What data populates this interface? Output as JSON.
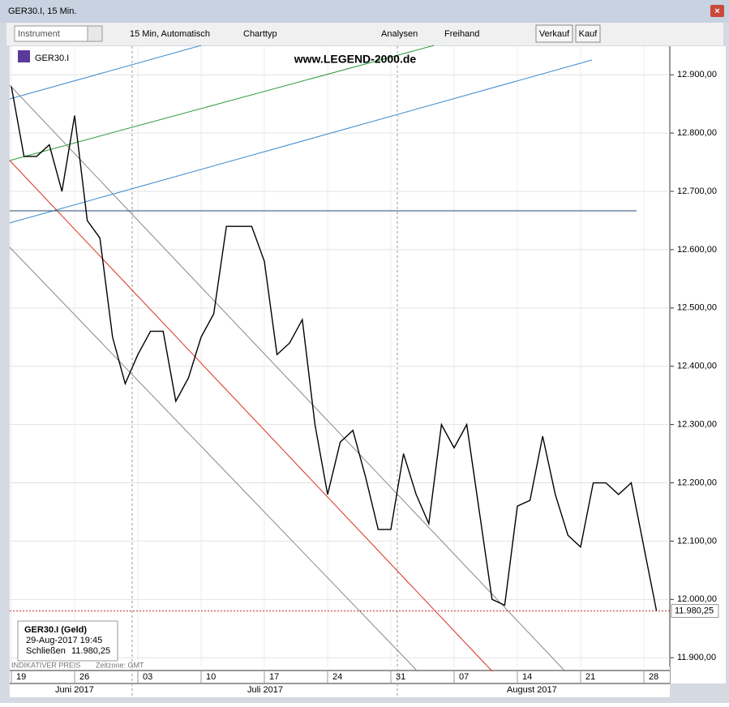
{
  "window": {
    "title": "GER30.I, 15 Min."
  },
  "toolbar": {
    "instrument": "Instrument",
    "interval": "15 Min,  Automatisch",
    "chart_type": "Charttyp",
    "analyses": "Analysen",
    "freehand": "Freihand",
    "sell": "Verkauf",
    "buy": "Kauf"
  },
  "chart_data": {
    "type": "line",
    "symbol": "GER30.I",
    "watermark": "www.LEGEND-2000.de",
    "categories": [
      "19",
      null,
      null,
      null,
      null,
      "26",
      null,
      null,
      null,
      null,
      "03",
      null,
      null,
      null,
      null,
      "10",
      null,
      null,
      null,
      null,
      "17",
      null,
      null,
      null,
      null,
      "24",
      null,
      null,
      null,
      null,
      "31",
      null,
      null,
      null,
      null,
      "07",
      null,
      null,
      null,
      null,
      "14",
      null,
      null,
      null,
      null,
      "21",
      null,
      null,
      null,
      null,
      "28",
      null
    ],
    "months": [
      "Juni 2017",
      "Juli 2017",
      "August 2017"
    ],
    "series": [
      {
        "name": "GER30.I",
        "color": "#000000",
        "values": [
          12880,
          12760,
          12760,
          12780,
          12700,
          12830,
          12650,
          12620,
          12450,
          12370,
          12420,
          12460,
          12460,
          12340,
          12380,
          12450,
          12490,
          12640,
          12640,
          12640,
          12580,
          12420,
          12440,
          12480,
          12300,
          12180,
          12270,
          12290,
          12210,
          12120,
          12120,
          12250,
          12180,
          12130,
          12300,
          12260,
          12300,
          12150,
          12000,
          11990,
          12160,
          12170,
          12280,
          12180,
          12110,
          12090,
          12200,
          12200,
          12180,
          12200,
          12090,
          11980.25
        ]
      }
    ],
    "last_price": {
      "value": 11980.25,
      "label": "11.980,25"
    },
    "ylim": [
      11885,
      12949
    ],
    "yticks": [
      {
        "value": 11900,
        "label": "11.900,00"
      },
      {
        "value": 12000,
        "label": "12.000,00"
      },
      {
        "value": 12100,
        "label": "12.100,00"
      },
      {
        "value": 12200,
        "label": "12.200,00"
      },
      {
        "value": 12300,
        "label": "12.300,00"
      },
      {
        "value": 12400,
        "label": "12.400,00"
      },
      {
        "value": 12500,
        "label": "12.500,00"
      },
      {
        "value": 12600,
        "label": "12.600,00"
      },
      {
        "value": 12700,
        "label": "12.700,00"
      },
      {
        "value": 12800,
        "label": "12.800,00"
      },
      {
        "value": 12900,
        "label": "12.900,00"
      }
    ],
    "grid": true,
    "info": {
      "title": "GER30.I (Geld)",
      "time": "29-Aug-2017 19:45",
      "close_label": "Schließen",
      "close_value": "11.980,25"
    },
    "footer": {
      "price_type": "INDIKATIVER PREIS",
      "timezone": "Zeitzone: GMT"
    }
  }
}
